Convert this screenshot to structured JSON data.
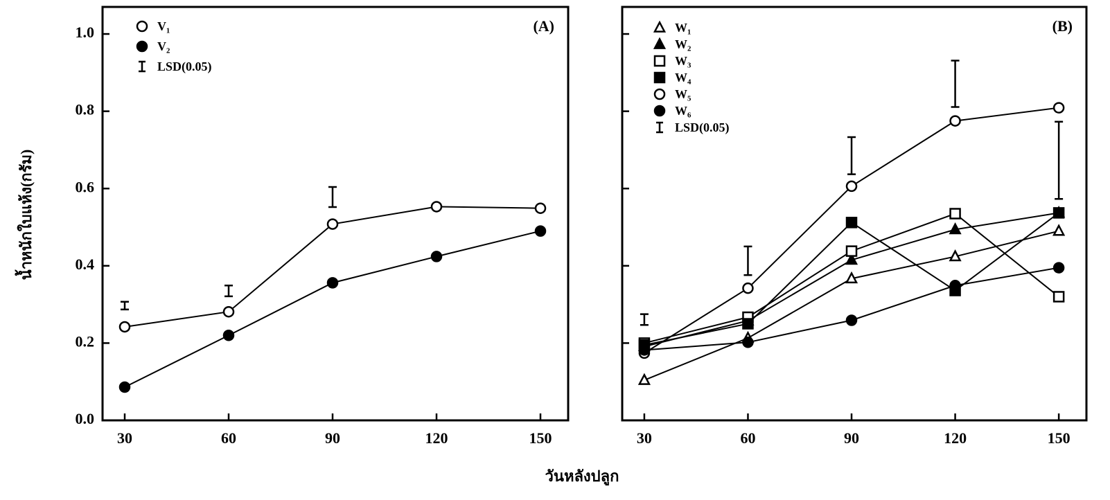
{
  "figure": {
    "xlabel": "วันหลังปลูก",
    "ylabel": "น้ำหนักใบแห้ง(กรัม)"
  },
  "chart_data": [
    {
      "type": "line",
      "panel_label": "(A)",
      "x": [
        30,
        60,
        90,
        120,
        150
      ],
      "xlim": [
        23.6,
        158
      ],
      "xticks": [
        30,
        60,
        90,
        120,
        150
      ],
      "ylim": [
        0,
        1.07
      ],
      "yticks": [
        {
          "value": 0,
          "label": "0.0"
        },
        0.2,
        0.4,
        0.6,
        0.8,
        {
          "value": 1,
          "label": "1.0"
        }
      ],
      "ytick_labels": true,
      "series": [
        {
          "name": "V₁",
          "color": "#000000",
          "marker": "circle",
          "filled": false,
          "values": [
            0.242,
            0.281,
            0.508,
            0.553,
            0.549
          ]
        },
        {
          "name": "V₂",
          "color": "#000000",
          "marker": "circle",
          "filled": true,
          "values": [
            0.086,
            0.22,
            0.356,
            0.424,
            0.49
          ]
        }
      ],
      "error_bars": {
        "name": "LSD(0.05)",
        "values": [
          0.297,
          0.335,
          0.578,
          null,
          null
        ],
        "errors": [
          0.01,
          0.014,
          0.026,
          null,
          null
        ]
      }
    },
    {
      "type": "line",
      "panel_label": "(B)",
      "x": [
        30,
        60,
        90,
        120,
        150
      ],
      "xlim": [
        23.6,
        158
      ],
      "xticks": [
        30,
        60,
        90,
        120,
        150
      ],
      "ylim": [
        0,
        1.07
      ],
      "yticks": [
        0,
        0.2,
        0.4,
        0.6,
        0.8,
        1
      ],
      "ytick_labels": false,
      "series": [
        {
          "name": "W₁",
          "color": "#000000",
          "marker": "triangle",
          "filled": false,
          "values": [
            0.104,
            0.213,
            0.367,
            0.424,
            0.49
          ]
        },
        {
          "name": "W₂",
          "color": "#000000",
          "marker": "triangle",
          "filled": true,
          "values": [
            0.191,
            0.258,
            0.415,
            0.494,
            0.537
          ]
        },
        {
          "name": "W₃",
          "color": "#000000",
          "marker": "square",
          "filled": false,
          "values": [
            0.2,
            0.267,
            0.438,
            0.535,
            0.32
          ]
        },
        {
          "name": "W₄",
          "color": "#000000",
          "marker": "square",
          "filled": true,
          "values": [
            0.195,
            0.25,
            0.512,
            0.336,
            0.537
          ]
        },
        {
          "name": "W₅",
          "color": "#000000",
          "marker": "circle",
          "filled": false,
          "values": [
            0.174,
            0.342,
            0.606,
            0.775,
            0.809
          ]
        },
        {
          "name": "W₆",
          "color": "#000000",
          "marker": "circle",
          "filled": true,
          "values": [
            0.182,
            0.202,
            0.259,
            0.349,
            0.395
          ]
        }
      ],
      "error_bars": {
        "name": "LSD(0.05)",
        "values": [
          0.261,
          0.413,
          0.685,
          0.871,
          0.673
        ],
        "errors": [
          0.014,
          0.037,
          0.048,
          0.06,
          0.1
        ]
      }
    }
  ]
}
